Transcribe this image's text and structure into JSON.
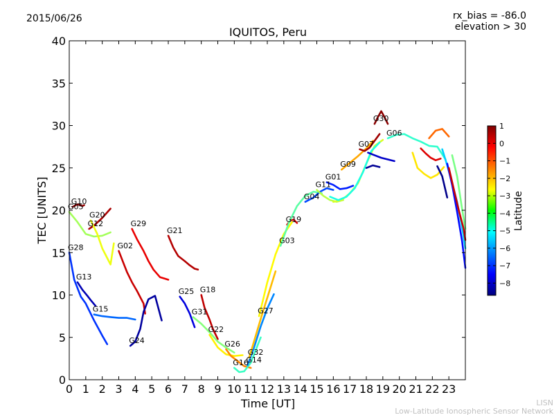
{
  "header": {
    "date": "2015/06/26",
    "bias": "rx_bias = -86.0",
    "elevation": "elevation > 30"
  },
  "footer": {
    "line1": "LISN",
    "line2": "Low-Latitude Ionospheric Sensor Network"
  },
  "colorbar": {
    "label": "Latitude",
    "ticks": [
      "1",
      "0",
      "−1",
      "−2",
      "−3",
      "−4",
      "−5",
      "−6",
      "−7",
      "−8"
    ],
    "range": [
      -8.7,
      1.0
    ],
    "colormap": "jet"
  },
  "chart_data": {
    "type": "line",
    "title": "IQUITOS, Peru",
    "xlabel": "Time [UT]",
    "ylabel": "TEC [UNITS]",
    "xlim": [
      0,
      24
    ],
    "ylim": [
      0,
      40
    ],
    "xticks": [
      "0",
      "1",
      "2",
      "3",
      "4",
      "5",
      "6",
      "7",
      "8",
      "9",
      "10",
      "11",
      "12",
      "13",
      "14",
      "15",
      "16",
      "17",
      "18",
      "19",
      "20",
      "21",
      "22",
      "23"
    ],
    "yticks": [
      "0",
      "5",
      "10",
      "15",
      "20",
      "25",
      "30",
      "35",
      "40"
    ],
    "grid": false,
    "series": [
      {
        "name": "G10",
        "lat": 0.8,
        "x": [
          0.2,
          0.5,
          0.8,
          0.9
        ],
        "y": [
          20.4,
          20.7,
          20.5,
          20.6
        ]
      },
      {
        "name": "G05",
        "lat": -3.5,
        "x": [
          0.0,
          0.5,
          1.0,
          1.5,
          2.0,
          2.5
        ],
        "y": [
          19.8,
          18.6,
          17.2,
          16.9,
          17.0,
          17.4
        ]
      },
      {
        "name": "G28",
        "lat": -7.0,
        "x": [
          0.0,
          0.3,
          0.7,
          1.0,
          1.5,
          2.0,
          2.3
        ],
        "y": [
          15.0,
          11.8,
          9.8,
          9.0,
          7.0,
          5.2,
          4.2
        ]
      },
      {
        "name": "G13",
        "lat": -8.2,
        "x": [
          0.5,
          0.8,
          1.1,
          1.3,
          1.6
        ],
        "y": [
          11.5,
          10.6,
          9.9,
          9.4,
          8.7
        ]
      },
      {
        "name": "G15",
        "lat": -6.5,
        "x": [
          1.5,
          2.0,
          2.5,
          3.0,
          3.5,
          4.0
        ],
        "y": [
          7.7,
          7.5,
          7.4,
          7.3,
          7.3,
          7.1
        ]
      },
      {
        "name": "G12",
        "lat": 0.6,
        "x": [
          1.2,
          1.5,
          2.0,
          2.5
        ],
        "y": [
          17.8,
          18.2,
          19.1,
          20.2
        ]
      },
      {
        "name": "G20",
        "lat": -2.8,
        "x": [
          1.3,
          1.7,
          2.0,
          2.5,
          2.7
        ],
        "y": [
          18.8,
          17.2,
          15.5,
          13.6,
          16.1
        ]
      },
      {
        "name": "G02",
        "lat": 0.3,
        "x": [
          3.0,
          3.3,
          3.5,
          3.8,
          4.1,
          4.5,
          4.6
        ],
        "y": [
          15.2,
          13.7,
          12.7,
          11.5,
          10.5,
          9.0,
          7.8
        ]
      },
      {
        "name": "G29",
        "lat": 0.0,
        "x": [
          3.8,
          4.1,
          4.5,
          4.8,
          5.1,
          5.5,
          6.0
        ],
        "y": [
          17.8,
          16.6,
          15.2,
          14.0,
          13.0,
          12.1,
          11.8
        ]
      },
      {
        "name": "G21",
        "lat": 0.5,
        "x": [
          6.0,
          6.3,
          6.6,
          7.0,
          7.3,
          7.6,
          7.8
        ],
        "y": [
          17.0,
          15.6,
          14.6,
          14.0,
          13.5,
          13.1,
          13.0
        ]
      },
      {
        "name": "G24",
        "lat": -8.4,
        "x": [
          3.7,
          4.0,
          4.3,
          4.5,
          4.8,
          5.2,
          5.6
        ],
        "y": [
          4.0,
          4.5,
          6.0,
          8.0,
          9.5,
          9.9,
          7.0
        ]
      },
      {
        "name": "G25",
        "lat": -7.8,
        "x": [
          6.7,
          7.0,
          7.3,
          7.6
        ],
        "y": [
          9.8,
          9.0,
          7.8,
          6.2
        ]
      },
      {
        "name": "G18",
        "lat": 0.4,
        "x": [
          8.0,
          8.2,
          8.5,
          8.7,
          9.0
        ],
        "y": [
          10.0,
          8.5,
          7.1,
          6.0,
          4.8
        ]
      },
      {
        "name": "G31",
        "lat": -3.8,
        "x": [
          7.5,
          8.0,
          8.5,
          9.0,
          9.5,
          10.0
        ],
        "y": [
          7.4,
          6.6,
          5.6,
          4.5,
          3.8,
          3.2
        ]
      },
      {
        "name": "G22",
        "lat": -2.5,
        "x": [
          8.5,
          9.0,
          9.5,
          10.0,
          10.5
        ],
        "y": [
          5.3,
          3.8,
          3.0,
          2.8,
          2.9
        ]
      },
      {
        "name": "G26",
        "lat": -1.5,
        "x": [
          9.5,
          9.8,
          10.2,
          10.6,
          11.0
        ],
        "y": [
          3.6,
          2.8,
          2.2,
          1.6,
          1.4
        ]
      },
      {
        "name": "G16",
        "lat": -4.5,
        "x": [
          10.0,
          10.3,
          10.6,
          11.0,
          11.3,
          11.6
        ],
        "y": [
          1.4,
          0.9,
          1.0,
          2.0,
          3.5,
          5.0
        ]
      },
      {
        "name": "G14",
        "lat": -6.2,
        "x": [
          10.8,
          11.2,
          11.6,
          12.0,
          12.4
        ],
        "y": [
          1.7,
          3.8,
          6.3,
          8.4,
          10.1
        ]
      },
      {
        "name": "G32",
        "lat": -2.0,
        "x": [
          10.9,
          11.3,
          11.7,
          12.1,
          12.5
        ],
        "y": [
          2.6,
          5.2,
          7.8,
          10.3,
          12.8
        ]
      },
      {
        "name": "G27",
        "lat": -2.6,
        "x": [
          11.5,
          12.0,
          12.5,
          13.0,
          13.5
        ],
        "y": [
          7.5,
          11.5,
          14.8,
          17.2,
          18.6
        ]
      },
      {
        "name": "G19",
        "lat": 0.2,
        "x": [
          13.2,
          13.4,
          13.6,
          13.8
        ],
        "y": [
          18.3,
          18.8,
          18.9,
          18.5
        ]
      },
      {
        "name": "G03",
        "lat": -4.2,
        "x": [
          12.8,
          13.3,
          13.8,
          14.3,
          14.8,
          15.3
        ],
        "y": [
          15.8,
          18.5,
          20.5,
          21.7,
          22.2,
          22.0
        ]
      },
      {
        "name": "G04",
        "lat": -6.8,
        "x": [
          14.3,
          14.8,
          15.2,
          15.6,
          16.0
        ],
        "y": [
          21.0,
          21.5,
          22.2,
          22.6,
          22.4
        ]
      },
      {
        "name": "G11",
        "lat": -3.3,
        "x": [
          15.0,
          15.4,
          15.8,
          16.2,
          16.6
        ],
        "y": [
          22.4,
          21.7,
          21.2,
          21.0,
          21.2
        ]
      },
      {
        "name": "G01",
        "lat": -7.2,
        "x": [
          15.6,
          16.0,
          16.4,
          16.8,
          17.2
        ],
        "y": [
          23.3,
          23.0,
          22.5,
          22.6,
          22.9
        ]
      },
      {
        "name": "G09",
        "lat": -1.8,
        "x": [
          16.5,
          17.0,
          17.5,
          18.0,
          18.4
        ],
        "y": [
          24.8,
          25.6,
          26.4,
          27.3,
          28.2
        ]
      },
      {
        "name": "G07",
        "lat": 0.7,
        "x": [
          17.6,
          17.9,
          18.2,
          18.5,
          18.8
        ],
        "y": [
          27.2,
          27.0,
          27.4,
          28.2,
          29.0
        ]
      },
      {
        "name": "G30",
        "lat": 0.9,
        "x": [
          18.5,
          18.7,
          18.9,
          19.1,
          19.3
        ],
        "y": [
          30.2,
          31.0,
          31.7,
          31.0,
          30.2
        ]
      },
      {
        "name": "G06",
        "lat": -4.6,
        "x": [
          19.3,
          19.8,
          20.3,
          20.8,
          21.3,
          21.8,
          22.3,
          22.8
        ],
        "y": [
          28.5,
          28.9,
          29.0,
          28.5,
          28.1,
          27.6,
          27.5,
          26.0
        ]
      },
      {
        "name": "",
        "lat": -3.0,
        "x": [
          16.0,
          16.5,
          17.0,
          17.5,
          18.0,
          18.5,
          19.0
        ],
        "y": [
          21.0,
          21.2,
          22.0,
          23.2,
          25.5,
          27.6,
          28.3
        ]
      },
      {
        "name": "",
        "lat": -4.8,
        "x": [
          15.8,
          16.3,
          16.8,
          17.3,
          17.8,
          18.3,
          18.8
        ],
        "y": [
          21.6,
          21.2,
          21.6,
          22.6,
          24.5,
          27.0,
          28.0
        ]
      },
      {
        "name": "",
        "lat": -8.0,
        "x": [
          18.1,
          18.5,
          18.9,
          19.3,
          19.7
        ],
        "y": [
          26.8,
          26.5,
          26.2,
          26.0,
          25.8
        ]
      },
      {
        "name": "",
        "lat": -8.5,
        "x": [
          18.0,
          18.4,
          18.8
        ],
        "y": [
          25.0,
          25.3,
          25.1
        ]
      },
      {
        "name": "",
        "lat": 0.1,
        "x": [
          21.3,
          21.6,
          21.9,
          22.2,
          22.5
        ],
        "y": [
          27.3,
          26.7,
          26.2,
          25.9,
          26.1
        ]
      },
      {
        "name": "",
        "lat": -2.4,
        "x": [
          20.8,
          21.1,
          21.5,
          21.9,
          22.3,
          22.7
        ],
        "y": [
          26.8,
          25.0,
          24.3,
          23.8,
          24.2,
          25.1
        ]
      },
      {
        "name": "",
        "lat": -1.2,
        "x": [
          21.8,
          22.2,
          22.6,
          23.0
        ],
        "y": [
          28.5,
          29.4,
          29.6,
          28.7
        ]
      },
      {
        "name": "",
        "lat": -8.6,
        "x": [
          22.3,
          22.6,
          22.9
        ],
        "y": [
          25.2,
          24.0,
          21.5
        ]
      },
      {
        "name": "",
        "lat": -5.5,
        "x": [
          22.6,
          22.9,
          23.2,
          23.5,
          23.8,
          24.0
        ],
        "y": [
          27.2,
          25.3,
          23.2,
          21.0,
          18.0,
          15.5
        ]
      },
      {
        "name": "",
        "lat": -7.4,
        "x": [
          22.9,
          23.2,
          23.5,
          23.8,
          24.0
        ],
        "y": [
          25.5,
          23.0,
          19.8,
          16.4,
          13.2
        ]
      },
      {
        "name": "",
        "lat": 0.3,
        "x": [
          23.0,
          23.3,
          23.6,
          23.9,
          24.0
        ],
        "y": [
          25.0,
          22.5,
          20.0,
          17.8,
          16.5
        ]
      },
      {
        "name": "",
        "lat": -3.9,
        "x": [
          23.2,
          23.5,
          23.8,
          24.0
        ],
        "y": [
          26.5,
          24.0,
          20.2,
          17.8
        ]
      }
    ]
  }
}
